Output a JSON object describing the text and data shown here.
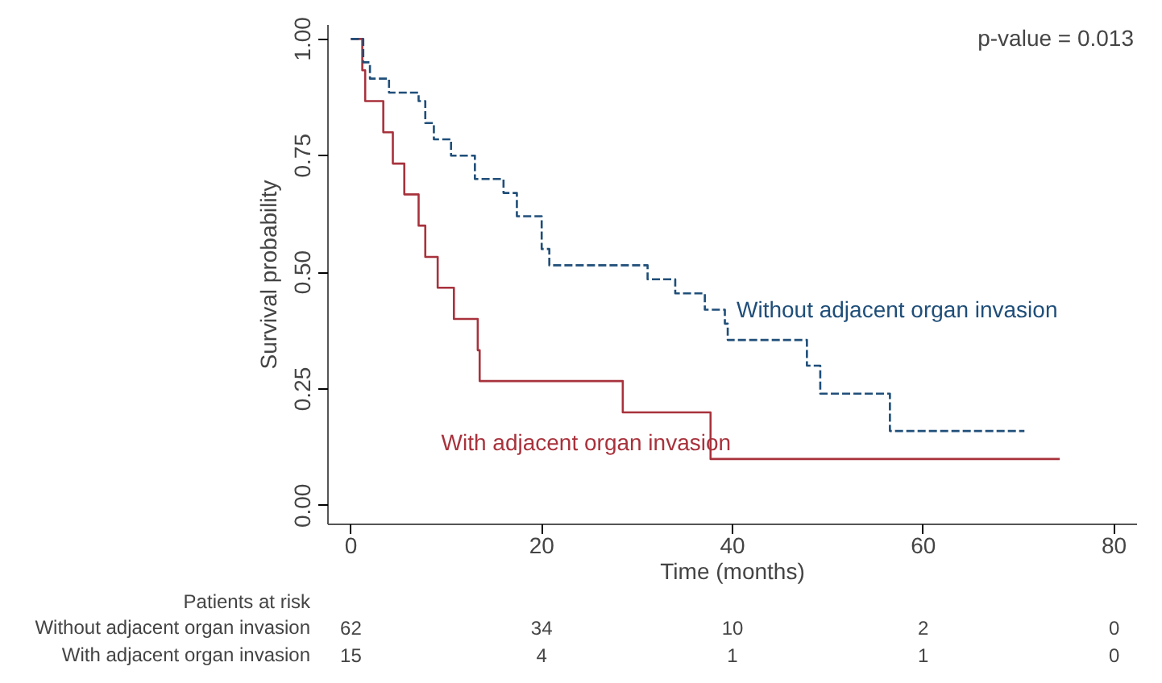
{
  "chart_data": {
    "type": "step",
    "xlabel": "Time (months)",
    "ylabel": "Survival probability",
    "xlim": [
      -2.4,
      82.4
    ],
    "ylim": [
      -0.04,
      1.03
    ],
    "xticks": [
      0,
      20,
      40,
      60,
      80
    ],
    "yticks": [
      {
        "value": 0,
        "label": "0.00"
      },
      {
        "value": 0.25,
        "label": "0.25"
      },
      {
        "value": 0.5,
        "label": "0.50"
      },
      {
        "value": 0.75,
        "label": "0.75"
      },
      {
        "value": 1,
        "label": "1.00"
      }
    ],
    "grid": false,
    "series": [
      {
        "name": "Without adjacent organ invasion",
        "color": "#1f4e79",
        "line_style": "dashed",
        "x": [
          0,
          1.3,
          2.0,
          4.0,
          7.1,
          7.8,
          8.7,
          10.5,
          13.0,
          16.0,
          17.4,
          20.0,
          20.8,
          31.1,
          34.0,
          37.1,
          39.2,
          39.5,
          47.8,
          49.2,
          56.5,
          70.6
        ],
        "values": [
          1.0,
          0.95,
          0.915,
          0.885,
          0.867,
          0.82,
          0.785,
          0.75,
          0.7,
          0.67,
          0.62,
          0.55,
          0.515,
          0.485,
          0.455,
          0.42,
          0.39,
          0.355,
          0.3,
          0.24,
          0.16,
          0.16
        ]
      },
      {
        "name": "With adjacent organ invasion",
        "color": "#a8323c",
        "line_style": "solid",
        "x": [
          0,
          1.2,
          1.5,
          3.4,
          4.4,
          5.6,
          7.1,
          7.8,
          9.1,
          10.8,
          13.3,
          13.5,
          28.5,
          37.7,
          74.3
        ],
        "values": [
          1.0,
          0.933,
          0.867,
          0.8,
          0.733,
          0.667,
          0.6,
          0.533,
          0.467,
          0.4,
          0.333,
          0.267,
          0.2,
          0.1,
          0.1
        ]
      }
    ],
    "annotations": [
      "p-value = 0.013",
      "Patients at risk",
      "Without adjacent organ invasion",
      "62",
      "34",
      "10",
      "2",
      "0",
      "With adjacent organ invasion",
      "15",
      "4",
      "1",
      "1",
      "0"
    ]
  }
}
